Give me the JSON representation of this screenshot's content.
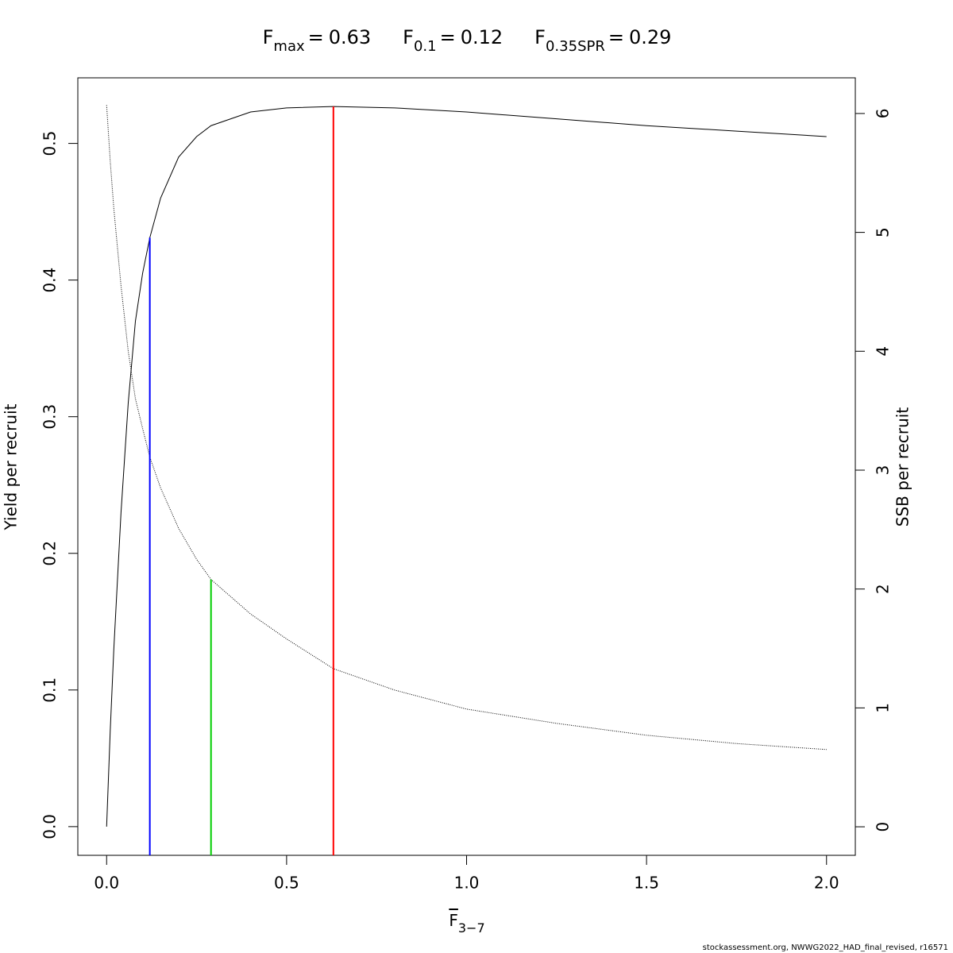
{
  "chart_data": {
    "type": "line",
    "title_items": [
      {
        "symbol": "F",
        "subscript": "max",
        "operator": "=",
        "value": 0.63,
        "color": "#ff0000",
        "line_top": 0.527,
        "line_axis": "y"
      },
      {
        "symbol": "F",
        "subscript": "0.1",
        "operator": "=",
        "value": 0.12,
        "color": "#0000ff",
        "line_top": 0.431,
        "line_axis": "y"
      },
      {
        "symbol": "F",
        "subscript": "0.35SPR",
        "operator": "=",
        "value": 0.29,
        "color": "#00cd00",
        "line_top": 2.08,
        "line_axis": "y2"
      }
    ],
    "xlabel": {
      "symbol": "F",
      "subscript": "3−7"
    },
    "ylabel": "Yield per recruit",
    "y2label": "SSB per recruit",
    "footer": "stockassessment.org, NWWG2022_HAD_final_revised, r16571",
    "x": [
      0,
      0.01,
      0.02,
      0.04,
      0.06,
      0.08,
      0.1,
      0.12,
      0.15,
      0.2,
      0.25,
      0.29,
      0.4,
      0.5,
      0.63,
      0.8,
      1.0,
      1.25,
      1.5,
      1.75,
      2.0
    ],
    "series": [
      {
        "color": "#000000",
        "values": [
          0,
          0.07,
          0.13,
          0.23,
          0.31,
          0.37,
          0.405,
          0.431,
          0.46,
          0.49,
          0.505,
          0.513,
          0.523,
          0.526,
          0.527,
          0.526,
          0.523,
          0.518,
          0.513,
          0.509,
          0.505
        ]
      },
      {
        "color": "#000000",
        "axis": "y2",
        "dash": "dotted",
        "values": [
          6.07,
          5.6,
          5.2,
          4.55,
          4.0,
          3.6,
          3.35,
          3.11,
          2.85,
          2.51,
          2.25,
          2.08,
          1.79,
          1.58,
          1.33,
          1.15,
          0.99,
          0.87,
          0.77,
          0.7,
          0.65
        ]
      }
    ],
    "xlim": [
      -0.08,
      2.08
    ],
    "xticks": [
      {
        "value": 0,
        "label": "0.0"
      },
      {
        "value": 0.5,
        "label": "0.5"
      },
      {
        "value": 1,
        "label": "1.0"
      },
      {
        "value": 1.5,
        "label": "1.5"
      },
      {
        "value": 2,
        "label": "2.0"
      }
    ],
    "ylim": [
      -0.021,
      0.548
    ],
    "yticks": [
      {
        "value": 0,
        "label": "0.0"
      },
      {
        "value": 0.1,
        "label": "0.1"
      },
      {
        "value": 0.2,
        "label": "0.2"
      },
      {
        "value": 0.3,
        "label": "0.3"
      },
      {
        "value": 0.4,
        "label": "0.4"
      },
      {
        "value": 0.5,
        "label": "0.5"
      }
    ],
    "y2lim": [
      -0.24,
      6.3
    ],
    "y2ticks": [
      0,
      1,
      2,
      3,
      4,
      5,
      6
    ],
    "grid": false
  }
}
